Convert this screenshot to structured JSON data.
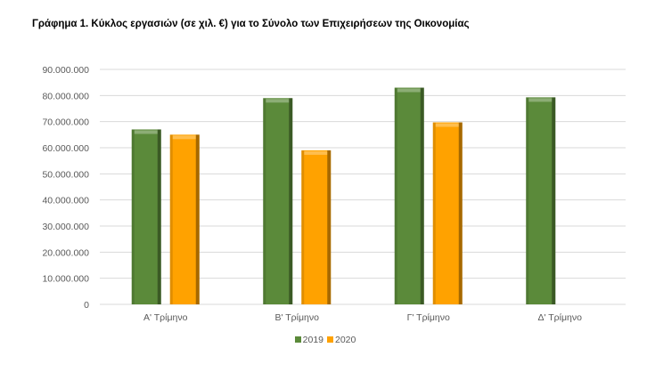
{
  "chart_data": {
    "type": "bar",
    "title": "Γράφημα 1.  Κύκλος εργασιών (σε χιλ. €) για το Σύνολο των Επιχειρήσεων της Οικονομίας",
    "categories": [
      "Α' Τρίμηνο",
      "Β' Τρίμηνο",
      "Γ' Τρίμηνο",
      "Δ' Τρίμηνο"
    ],
    "series": [
      {
        "name": "2019",
        "color": "#5b8a3a",
        "values": [
          67000000,
          79000000,
          83000000,
          79300000
        ]
      },
      {
        "name": "2020",
        "color": "#ffa200",
        "values": [
          65000000,
          59000000,
          69700000,
          null
        ]
      }
    ],
    "ylim": [
      0,
      90000000
    ],
    "yticks": [
      "0",
      "10.000.000",
      "20.000.000",
      "30.000.000",
      "40.000.000",
      "50.000.000",
      "60.000.000",
      "70.000.000",
      "80.000.000",
      "90.000.000"
    ],
    "grid": true,
    "legend": "bottom",
    "xlabel": "",
    "ylabel": ""
  }
}
